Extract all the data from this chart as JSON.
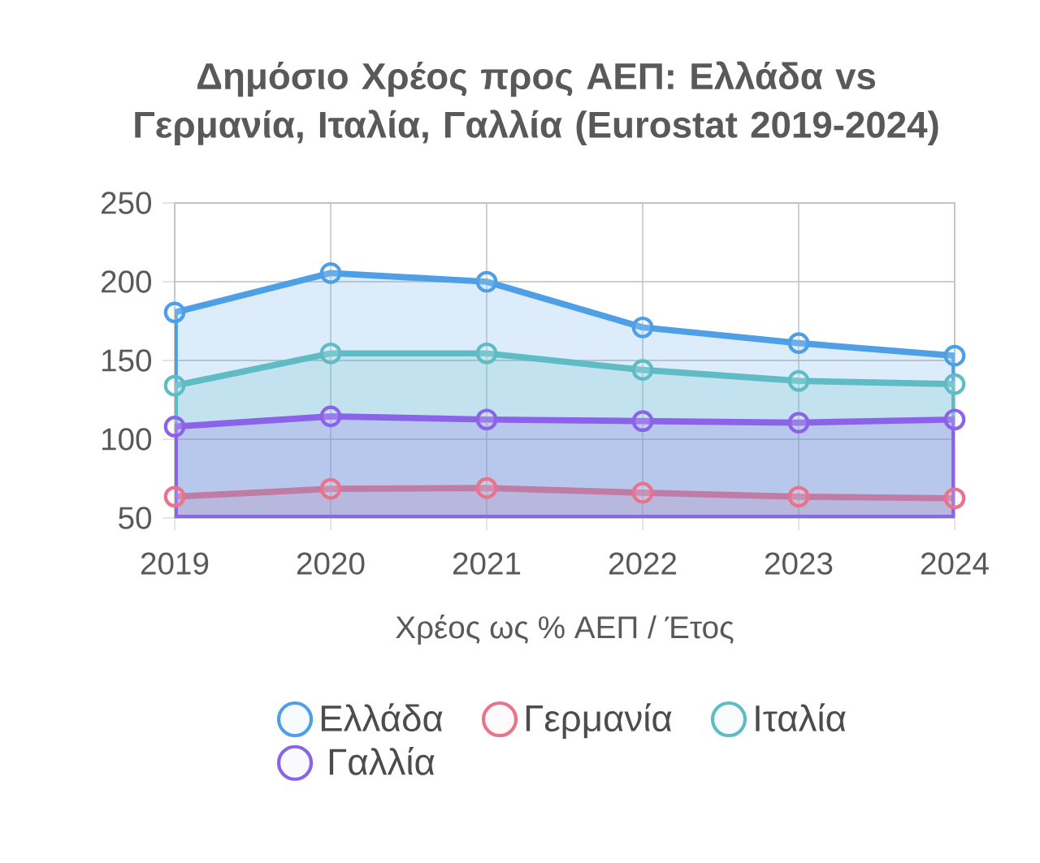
{
  "chart_data": {
    "type": "area",
    "title": "Δημόσιο Χρέος προς ΑΕΠ: Ελλάδα vs Γερμανία, Ιταλία, Γαλλία (Eurostat 2019-2024)",
    "xlabel": "Χρέος ως % ΑΕΠ / Έτος",
    "categories": [
      "2019",
      "2020",
      "2021",
      "2022",
      "2023",
      "2024"
    ],
    "series": [
      {
        "name": "Ελλάδα",
        "color": "#4e9fe5",
        "values": [
          180.5,
          205.5,
          200,
          171,
          161,
          153
        ]
      },
      {
        "name": "Γερμανία",
        "color": "#e8738a",
        "values": [
          63.5,
          68.5,
          69,
          66,
          63.5,
          62.5
        ]
      },
      {
        "name": "Ιταλία",
        "color": "#5fbcc4",
        "values": [
          134,
          154.5,
          154.5,
          144,
          137,
          135
        ]
      },
      {
        "name": "Γαλλία",
        "color": "#8b63e8",
        "values": [
          108,
          114.5,
          112.5,
          111.5,
          110.5,
          112.5
        ]
      }
    ],
    "ylim": [
      50,
      250
    ],
    "yticks": [
      50,
      100,
      150,
      200,
      250
    ],
    "grid": true,
    "legend": "bottom",
    "marker": "circle",
    "line_style": "solid"
  }
}
